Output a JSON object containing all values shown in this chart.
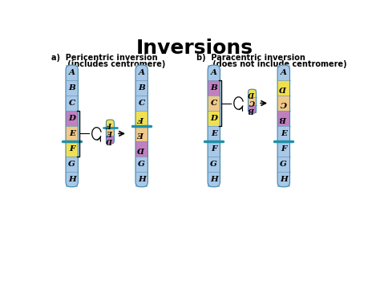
{
  "title": "Inversions",
  "title_fontsize": 18,
  "title_fontweight": "bold",
  "bg_color": "#ffffff",
  "BLUE": "#a8c8e8",
  "PURPLE": "#c080c0",
  "YELLOW": "#f0e050",
  "ORANGE": "#f0c888",
  "CENTRO": "#2090a8",
  "peri_a_label1": "a)  Pericentric inversion",
  "peri_a_label2": "      (includes centromere)",
  "para_b_label1": "b)  Paracentric inversion",
  "para_b_label2": "      (does not include centromere)",
  "segs_peri_orig": [
    [
      "BLUE",
      "A"
    ],
    [
      "BLUE",
      "B"
    ],
    [
      "BLUE",
      "C"
    ],
    [
      "PURPLE",
      "D"
    ],
    [
      "ORANGE",
      "E"
    ],
    [
      "YELLOW",
      "F"
    ],
    [
      "BLUE",
      "G"
    ],
    [
      "BLUE",
      "H"
    ]
  ],
  "segs_peri_res": [
    [
      "BLUE",
      "A"
    ],
    [
      "BLUE",
      "B"
    ],
    [
      "BLUE",
      "C"
    ],
    [
      "YELLOW",
      "F"
    ],
    [
      "ORANGE",
      "E"
    ],
    [
      "PURPLE",
      "D"
    ],
    [
      "BLUE",
      "G"
    ],
    [
      "BLUE",
      "H"
    ]
  ],
  "segs_para_orig": [
    [
      "BLUE",
      "A"
    ],
    [
      "PURPLE",
      "B"
    ],
    [
      "ORANGE",
      "C"
    ],
    [
      "YELLOW",
      "D"
    ],
    [
      "BLUE",
      "E"
    ],
    [
      "BLUE",
      "F"
    ],
    [
      "BLUE",
      "G"
    ],
    [
      "BLUE",
      "H"
    ]
  ],
  "segs_para_res": [
    [
      "BLUE",
      "A"
    ],
    [
      "YELLOW",
      "D"
    ],
    [
      "ORANGE",
      "C"
    ],
    [
      "PURPLE",
      "B"
    ],
    [
      "BLUE",
      "E"
    ],
    [
      "BLUE",
      "F"
    ],
    [
      "BLUE",
      "G"
    ],
    [
      "BLUE",
      "H"
    ]
  ],
  "mini_peri": [
    [
      "YELLOW",
      "F"
    ],
    [
      "ORANGE",
      "E"
    ],
    [
      "PURPLE",
      "D"
    ]
  ],
  "mini_para": [
    [
      "YELLOW",
      "D"
    ],
    [
      "ORANGE",
      "C"
    ],
    [
      "PURPLE",
      "B"
    ]
  ],
  "peri_orig_centro_idx": 5,
  "peri_res_centro_idx": 4,
  "para_orig_centro_idx": 5,
  "para_res_centro_idx": 5,
  "mini_peri_centro_after": 1,
  "flipped_peri_res": [
    "F",
    "E",
    "D"
  ],
  "flipped_para_res": [
    "D",
    "C",
    "B"
  ],
  "flipped_mini_peri": [
    "F",
    "E",
    "D"
  ],
  "flipped_mini_para": [
    "D",
    "C",
    "B"
  ]
}
